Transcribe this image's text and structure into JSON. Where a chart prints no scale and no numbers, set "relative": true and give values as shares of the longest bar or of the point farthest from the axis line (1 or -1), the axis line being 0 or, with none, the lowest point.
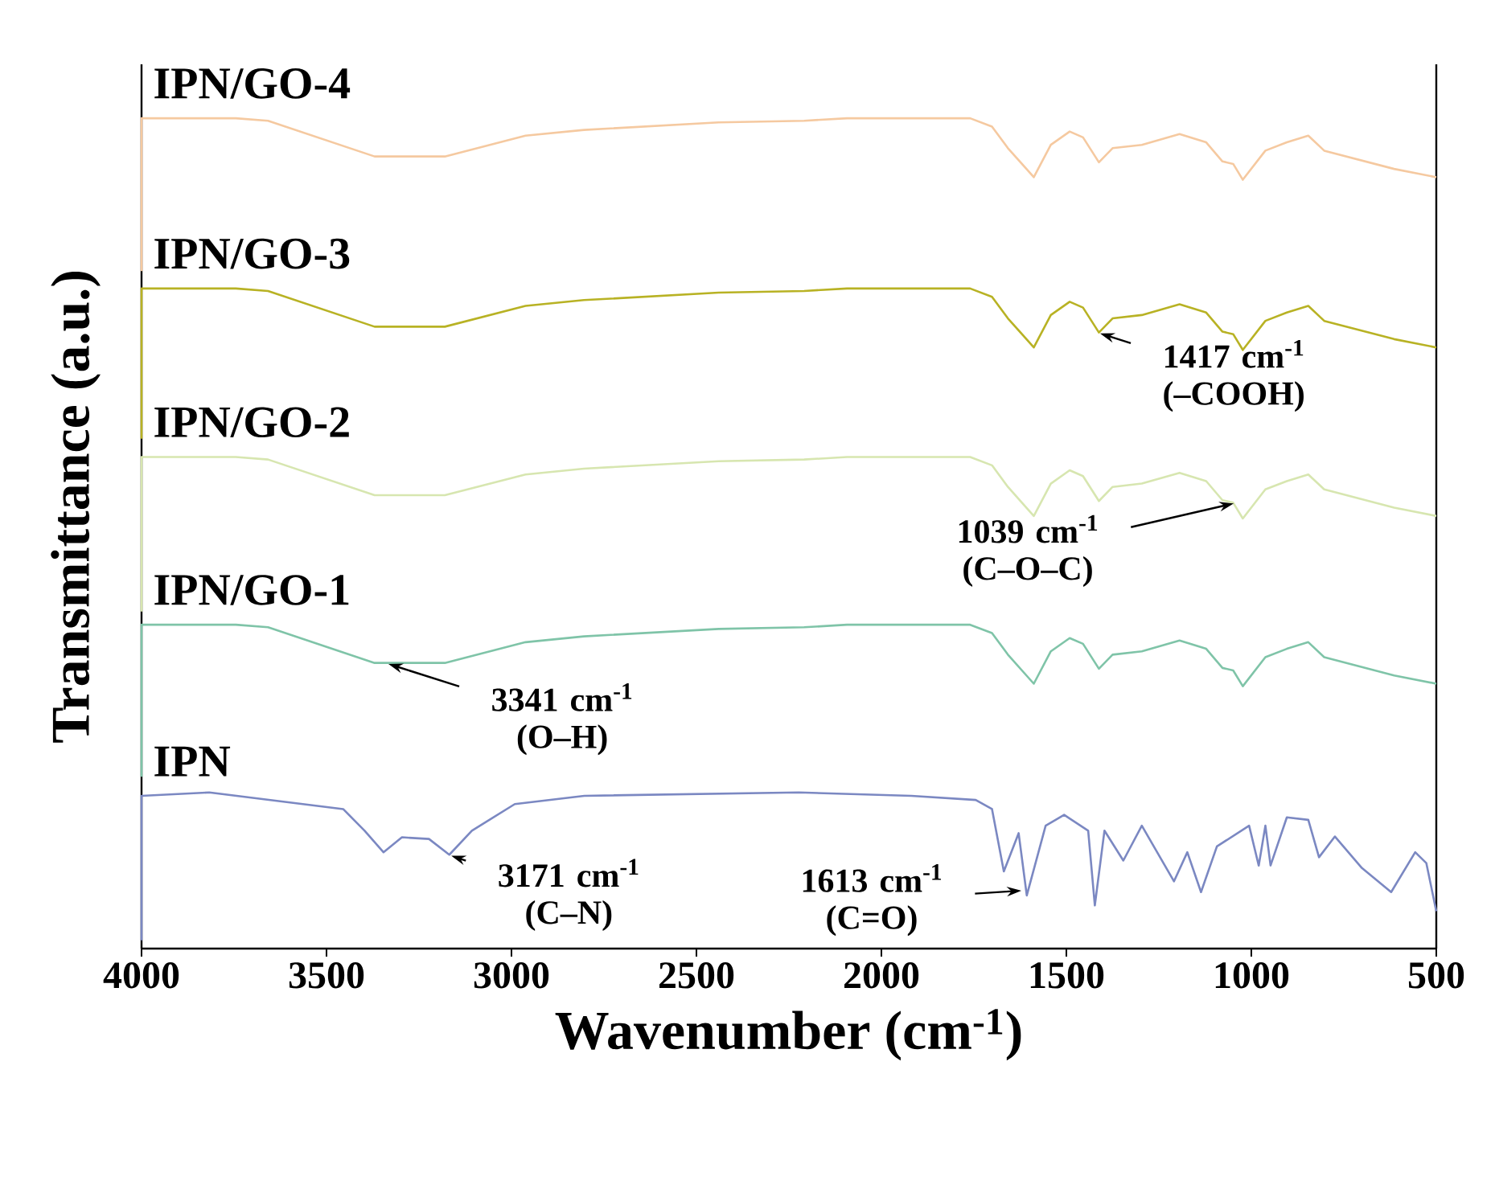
{
  "chart_data": {
    "type": "line",
    "relative": true,
    "xlabel": "Wavenumber (cm$^{-1}$)",
    "ylabel": "Transmittance (a.u.)",
    "xlim": [
      4000,
      500
    ],
    "xticks": [
      4000,
      3500,
      3000,
      2500,
      2000,
      1500,
      1000,
      500
    ],
    "x": [
      4000,
      4000,
      3745,
      3658,
      3370,
      3180,
      2962,
      2804,
      2440,
      2209,
      2093,
      1760,
      1701,
      1658,
      1588,
      1542,
      1491,
      1455,
      1412,
      1375,
      1296,
      1194,
      1122,
      1078,
      1049,
      1023,
      962,
      904,
      846,
      803,
      614,
      500
    ],
    "series": [
      {
        "name": "IPN/GO-4",
        "color": "#f5c9a0",
        "values": [
          0.816,
          1,
          1,
          0.997,
          0.954,
          0.954,
          0.979,
          0.986,
          0.995,
          0.997,
          1,
          1,
          0.99,
          0.964,
          0.929,
          0.968,
          0.984,
          0.977,
          0.947,
          0.964,
          0.968,
          0.981,
          0.971,
          0.948,
          0.945,
          0.926,
          0.961,
          0.971,
          0.979,
          0.961,
          0.939,
          0.929
        ]
      },
      {
        "name": "IPN/GO-3",
        "color": "#b8b224",
        "values": [
          0.614,
          0.795,
          0.795,
          0.792,
          0.749,
          0.749,
          0.774,
          0.781,
          0.79,
          0.792,
          0.795,
          0.795,
          0.785,
          0.759,
          0.724,
          0.763,
          0.779,
          0.772,
          0.742,
          0.759,
          0.763,
          0.776,
          0.766,
          0.743,
          0.74,
          0.721,
          0.756,
          0.766,
          0.774,
          0.756,
          0.734,
          0.724
        ]
      },
      {
        "name": "IPN/GO-2",
        "color": "#d7e6b0",
        "values": [
          0.406,
          0.592,
          0.592,
          0.589,
          0.546,
          0.546,
          0.571,
          0.578,
          0.587,
          0.589,
          0.592,
          0.592,
          0.582,
          0.556,
          0.521,
          0.56,
          0.576,
          0.569,
          0.539,
          0.556,
          0.56,
          0.573,
          0.563,
          0.54,
          0.537,
          0.518,
          0.553,
          0.563,
          0.571,
          0.553,
          0.531,
          0.521
        ]
      },
      {
        "name": "IPN/GO-1",
        "color": "#7fc4a8",
        "values": [
          0.207,
          0.39,
          0.39,
          0.387,
          0.344,
          0.344,
          0.369,
          0.376,
          0.385,
          0.387,
          0.39,
          0.39,
          0.38,
          0.354,
          0.319,
          0.358,
          0.374,
          0.367,
          0.337,
          0.354,
          0.358,
          0.371,
          0.361,
          0.338,
          0.335,
          0.316,
          0.351,
          0.361,
          0.369,
          0.351,
          0.329,
          0.319
        ]
      },
      {
        "name": "IPN",
        "color": "#7b88c2",
        "x": [
          4000,
          4000,
          3817,
          3455,
          3397,
          3346,
          3296,
          3223,
          3168,
          3107,
          2991,
          2803,
          2223,
          1919,
          1745,
          1701,
          1669,
          1629,
          1607,
          1556,
          1506,
          1441,
          1423,
          1397,
          1346,
          1296,
          1209,
          1173,
          1136,
          1093,
          1006,
          980,
          962,
          948,
          904,
          846,
          817,
          774,
          701,
          622,
          557,
          527,
          500
        ],
        "values": [
          0.01,
          0.184,
          0.188,
          0.168,
          0.142,
          0.116,
          0.134,
          0.132,
          0.113,
          0.142,
          0.174,
          0.184,
          0.188,
          0.184,
          0.179,
          0.168,
          0.093,
          0.139,
          0.064,
          0.148,
          0.161,
          0.142,
          0.052,
          0.142,
          0.106,
          0.148,
          0.081,
          0.116,
          0.068,
          0.123,
          0.148,
          0.1,
          0.148,
          0.1,
          0.158,
          0.155,
          0.11,
          0.135,
          0.097,
          0.068,
          0.116,
          0.103,
          0.045
        ]
      }
    ],
    "annotations": [
      {
        "text": "3341 cm$^{-1}$ (O–H)",
        "x": 3341,
        "y": 0.344
      },
      {
        "text": "3171 cm$^{-1}$ (C–N)",
        "x": 3171,
        "y": 0.113
      },
      {
        "text": "1613 cm$^{-1}$ (C=O)",
        "x": 1613,
        "y": 0.07
      },
      {
        "text": "1039 cm$^{-1}$ (C–O–C)",
        "x": 1039,
        "y": 0.537
      },
      {
        "text": "1417 cm$^{-1}$ (–COOH)",
        "x": 1417,
        "y": 0.742
      }
    ]
  }
}
